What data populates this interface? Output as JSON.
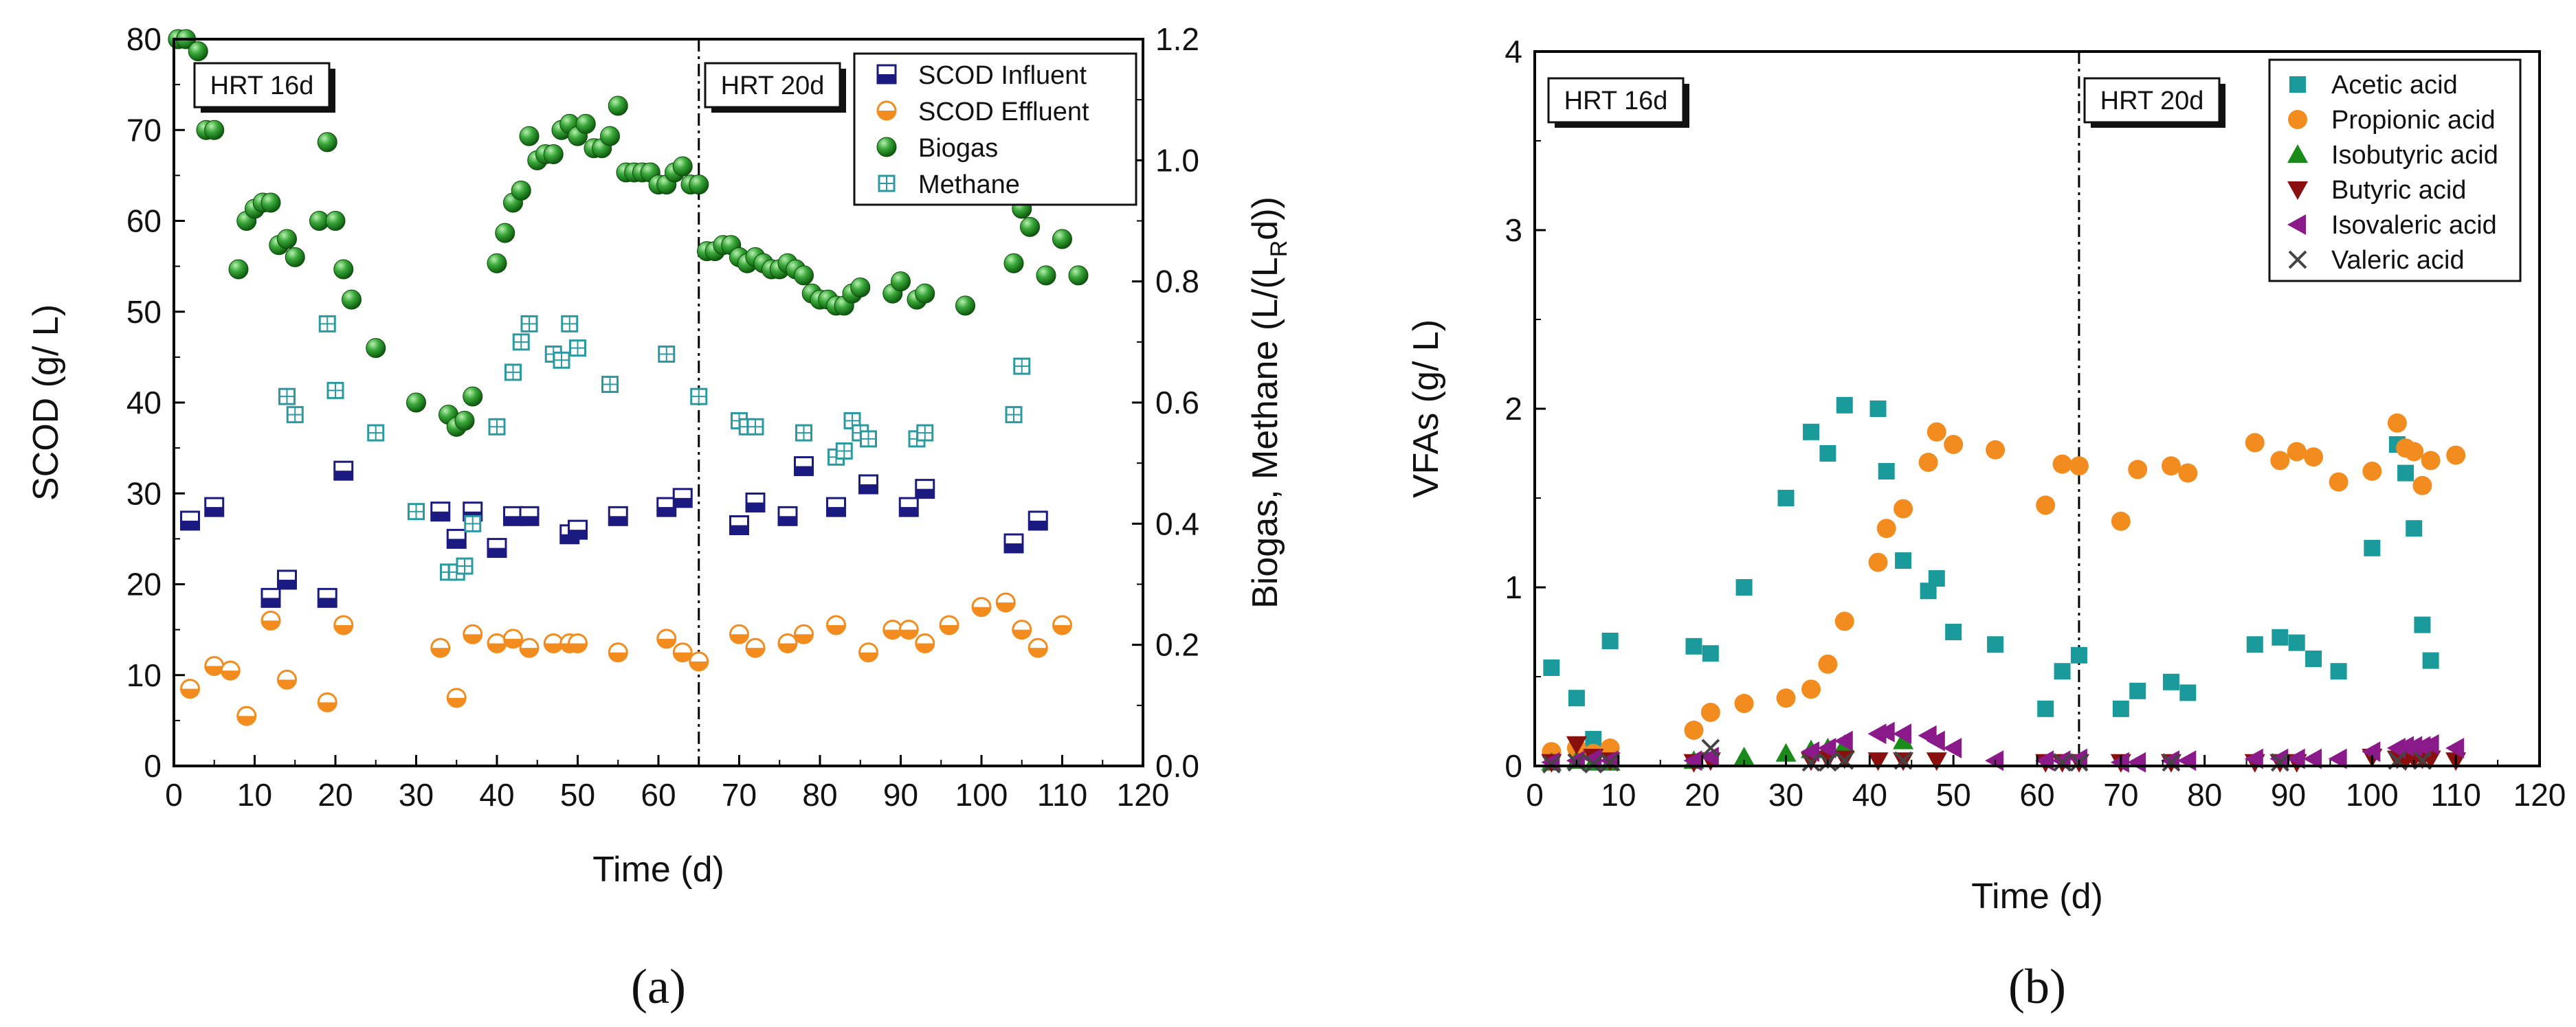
{
  "figure_labels": [
    "(a)",
    "(b)"
  ],
  "chart_data": [
    {
      "id": "a",
      "type": "scatter",
      "xlabel": "Time (d)",
      "ylabel": "SCOD (g/ L)",
      "y2label": "Biogas, Methane (L/(L",
      "y2label_sub": "R",
      "y2label_end": "d))",
      "xlim": [
        0,
        120
      ],
      "ylim": [
        0,
        80
      ],
      "y2lim": [
        0,
        1.2
      ],
      "xticks": [
        "0",
        "10",
        "20",
        "30",
        "40",
        "50",
        "60",
        "70",
        "80",
        "90",
        "100",
        "110",
        "120"
      ],
      "yticks": [
        "0",
        "10",
        "20",
        "30",
        "40",
        "50",
        "60",
        "70",
        "80"
      ],
      "y2ticks": [
        "0.0",
        "0.2",
        "0.4",
        "0.6",
        "0.8",
        "1.0",
        "1.2"
      ],
      "vline_x": 65,
      "annotations": [
        "HRT 16d",
        "HRT 20d"
      ],
      "legend_position": "top-right",
      "series": [
        {
          "name": "SCOD Influent",
          "axis": "left",
          "marker": "half-square",
          "color": "#1a1a80",
          "x": [
            2,
            5,
            12,
            14,
            19,
            21,
            33,
            35,
            37,
            40,
            42,
            44,
            49,
            50,
            55,
            61,
            63,
            70,
            72,
            76,
            78,
            82,
            86,
            91,
            93,
            104,
            107
          ],
          "y": [
            27,
            28.5,
            18.5,
            20.5,
            18.5,
            32.5,
            28,
            25,
            28,
            24,
            27.5,
            27.5,
            25.5,
            26,
            27.5,
            28.5,
            29.5,
            26.5,
            29,
            27.5,
            33,
            28.5,
            31,
            28.5,
            30.5,
            24.5,
            27
          ]
        },
        {
          "name": "SCOD Effluent",
          "axis": "left",
          "marker": "half-circle",
          "color": "#f28c1e",
          "x": [
            2,
            5,
            7,
            9,
            12,
            14,
            19,
            21,
            33,
            35,
            37,
            40,
            42,
            44,
            47,
            49,
            50,
            55,
            61,
            63,
            65,
            70,
            72,
            76,
            78,
            82,
            86,
            89,
            91,
            93,
            96,
            100,
            103,
            105,
            107,
            110
          ],
          "y": [
            8.5,
            11,
            10.5,
            5.5,
            16,
            9.5,
            7,
            15.5,
            13,
            7.5,
            14.5,
            13.5,
            14,
            13,
            13.5,
            13.5,
            13.5,
            12.5,
            14,
            12.5,
            11.5,
            14.5,
            13,
            13.5,
            14.5,
            15.5,
            12.5,
            15,
            15,
            13.5,
            15.5,
            17.5,
            18,
            15,
            13,
            15.5
          ]
        },
        {
          "name": "Biogas",
          "axis": "right",
          "marker": "sphere",
          "color": "#2a9a2a",
          "x": [
            0.5,
            1.5,
            3,
            4,
            5,
            8,
            9,
            10,
            11,
            12,
            13,
            14,
            15,
            18,
            19,
            20,
            21,
            22,
            25,
            30,
            34,
            35,
            36,
            37,
            40,
            41,
            42,
            43,
            44,
            45,
            46,
            47,
            48,
            49,
            50,
            51,
            52,
            53,
            54,
            55,
            56,
            57,
            58,
            59,
            60,
            61,
            62,
            63,
            64,
            65,
            66,
            67,
            68,
            69,
            70,
            71,
            72,
            73,
            74,
            75,
            76,
            77,
            78,
            79,
            80,
            81,
            82,
            83,
            84,
            85,
            89,
            90,
            92,
            93,
            98,
            104,
            105,
            106,
            108,
            110,
            112
          ],
          "y": [
            1.2,
            1.2,
            1.18,
            1.05,
            1.05,
            0.82,
            0.9,
            0.92,
            0.93,
            0.93,
            0.86,
            0.87,
            0.84,
            0.9,
            1.03,
            0.9,
            0.82,
            0.77,
            0.69,
            0.6,
            0.58,
            0.56,
            0.57,
            0.61,
            0.83,
            0.88,
            0.93,
            0.95,
            1.04,
            1.0,
            1.01,
            1.01,
            1.05,
            1.06,
            1.04,
            1.06,
            1.02,
            1.02,
            1.04,
            1.09,
            0.98,
            0.98,
            0.98,
            0.98,
            0.96,
            0.96,
            0.98,
            0.99,
            0.96,
            0.96,
            0.85,
            0.85,
            0.86,
            0.86,
            0.84,
            0.83,
            0.84,
            0.83,
            0.82,
            0.82,
            0.83,
            0.82,
            0.81,
            0.78,
            0.77,
            0.77,
            0.76,
            0.76,
            0.78,
            0.79,
            0.78,
            0.8,
            0.77,
            0.78,
            0.76,
            0.83,
            0.92,
            0.89,
            0.81,
            0.87,
            0.81
          ]
        },
        {
          "name": "Methane",
          "axis": "right",
          "marker": "grid-square",
          "color": "#2a9aa0",
          "x": [
            14,
            15,
            19,
            20,
            25,
            30,
            34,
            35,
            36,
            37,
            40,
            42,
            43,
            44,
            47,
            48,
            49,
            50,
            54,
            61,
            65,
            70,
            71,
            72,
            78,
            82,
            83,
            84,
            85,
            86,
            92,
            93,
            104,
            105
          ],
          "y": [
            0.61,
            0.58,
            0.73,
            0.62,
            0.55,
            0.42,
            0.32,
            0.32,
            0.33,
            0.4,
            0.56,
            0.65,
            0.7,
            0.73,
            0.68,
            0.67,
            0.73,
            0.69,
            0.63,
            0.68,
            0.61,
            0.57,
            0.56,
            0.56,
            0.55,
            0.51,
            0.52,
            0.57,
            0.55,
            0.54,
            0.54,
            0.55,
            0.58,
            0.66
          ]
        }
      ]
    },
    {
      "id": "b",
      "type": "scatter",
      "xlabel": "Time (d)",
      "ylabel": "VFAs (g/ L)",
      "xlim": [
        0,
        120
      ],
      "ylim": [
        0,
        4
      ],
      "xticks": [
        "0",
        "10",
        "20",
        "30",
        "40",
        "50",
        "60",
        "70",
        "80",
        "90",
        "100",
        "110",
        "120"
      ],
      "yticks": [
        "0",
        "1",
        "2",
        "3",
        "4"
      ],
      "vline_x": 65,
      "annotations": [
        "HRT 16d",
        "HRT 20d"
      ],
      "legend_position": "top-right",
      "series": [
        {
          "name": "Acetic acid",
          "marker": "square",
          "color": "#1a9a9a",
          "x": [
            2,
            5,
            7,
            9,
            19,
            21,
            25,
            30,
            33,
            35,
            37,
            41,
            42,
            44,
            47,
            48,
            50,
            55,
            61,
            63,
            65,
            70,
            72,
            76,
            78,
            86,
            89,
            91,
            93,
            96,
            100,
            103,
            104,
            105,
            106,
            107
          ],
          "y": [
            0.55,
            0.38,
            0.15,
            0.7,
            0.67,
            0.63,
            1.0,
            1.5,
            1.87,
            1.75,
            2.02,
            2.0,
            1.65,
            1.15,
            0.98,
            1.05,
            0.75,
            0.68,
            0.32,
            0.53,
            0.62,
            0.32,
            0.42,
            0.47,
            0.41,
            0.68,
            0.72,
            0.69,
            0.6,
            0.53,
            1.22,
            1.8,
            1.64,
            1.33,
            0.79,
            0.59
          ]
        },
        {
          "name": "Propionic acid",
          "marker": "circle",
          "color": "#f28c1e",
          "x": [
            2,
            5,
            7,
            9,
            19,
            21,
            25,
            30,
            33,
            35,
            37,
            41,
            42,
            44,
            47,
            48,
            50,
            55,
            61,
            63,
            65,
            70,
            72,
            76,
            78,
            86,
            89,
            91,
            93,
            96,
            100,
            103,
            104,
            105,
            106,
            107,
            110
          ],
          "y": [
            0.08,
            0.1,
            0.07,
            0.1,
            0.2,
            0.3,
            0.35,
            0.38,
            0.43,
            0.57,
            0.81,
            1.14,
            1.33,
            1.44,
            1.7,
            1.87,
            1.8,
            1.77,
            1.46,
            1.69,
            1.68,
            1.37,
            1.66,
            1.68,
            1.64,
            1.81,
            1.71,
            1.76,
            1.73,
            1.59,
            1.65,
            1.92,
            1.78,
            1.76,
            1.57,
            1.71,
            1.74
          ]
        },
        {
          "name": "Isobutyric acid",
          "marker": "triangle-up",
          "color": "#1a8a1a",
          "x": [
            2,
            5,
            7,
            9,
            19,
            25,
            30,
            33,
            35,
            37,
            44
          ],
          "y": [
            0.02,
            0.03,
            0.02,
            0.02,
            0.03,
            0.05,
            0.07,
            0.09,
            0.1,
            0.12,
            0.14
          ]
        },
        {
          "name": "Butyric acid",
          "marker": "triangle-down",
          "color": "#8a1010",
          "x": [
            2,
            5,
            7,
            9,
            19,
            21,
            33,
            35,
            37,
            41,
            44,
            48,
            61,
            63,
            65,
            70,
            76,
            86,
            89,
            91,
            100,
            103,
            104,
            105,
            106,
            107,
            110
          ],
          "y": [
            0.02,
            0.12,
            0.05,
            0.03,
            0.02,
            0.03,
            0.03,
            0.04,
            0.04,
            0.03,
            0.03,
            0.03,
            0.02,
            0.02,
            0.02,
            0.02,
            0.02,
            0.02,
            0.02,
            0.02,
            0.05,
            0.04,
            0.03,
            0.04,
            0.04,
            0.04,
            0.03
          ]
        },
        {
          "name": "Isovaleric acid",
          "marker": "triangle-left",
          "color": "#8a1a8a",
          "x": [
            2,
            5,
            7,
            9,
            19,
            21,
            33,
            35,
            37,
            41,
            42,
            44,
            47,
            48,
            50,
            55,
            61,
            63,
            65,
            70,
            72,
            76,
            78,
            86,
            89,
            91,
            93,
            96,
            100,
            103,
            104,
            105,
            106,
            107,
            110
          ],
          "y": [
            0.02,
            0.03,
            0.04,
            0.03,
            0.03,
            0.05,
            0.08,
            0.1,
            0.14,
            0.18,
            0.19,
            0.18,
            0.17,
            0.14,
            0.1,
            0.03,
            0.03,
            0.03,
            0.04,
            0.02,
            0.02,
            0.03,
            0.03,
            0.04,
            0.04,
            0.04,
            0.04,
            0.04,
            0.08,
            0.1,
            0.11,
            0.11,
            0.11,
            0.12,
            0.1
          ]
        },
        {
          "name": "Valeric acid",
          "marker": "x",
          "color": "#444444",
          "x": [
            2,
            5,
            7,
            9,
            21,
            33,
            35,
            37,
            44,
            63,
            65,
            76,
            89,
            103,
            106
          ],
          "y": [
            0.01,
            0.02,
            0.01,
            0.02,
            0.1,
            0.02,
            0.02,
            0.03,
            0.03,
            0.02,
            0.02,
            0.02,
            0.02,
            0.03,
            0.03
          ]
        }
      ]
    }
  ]
}
